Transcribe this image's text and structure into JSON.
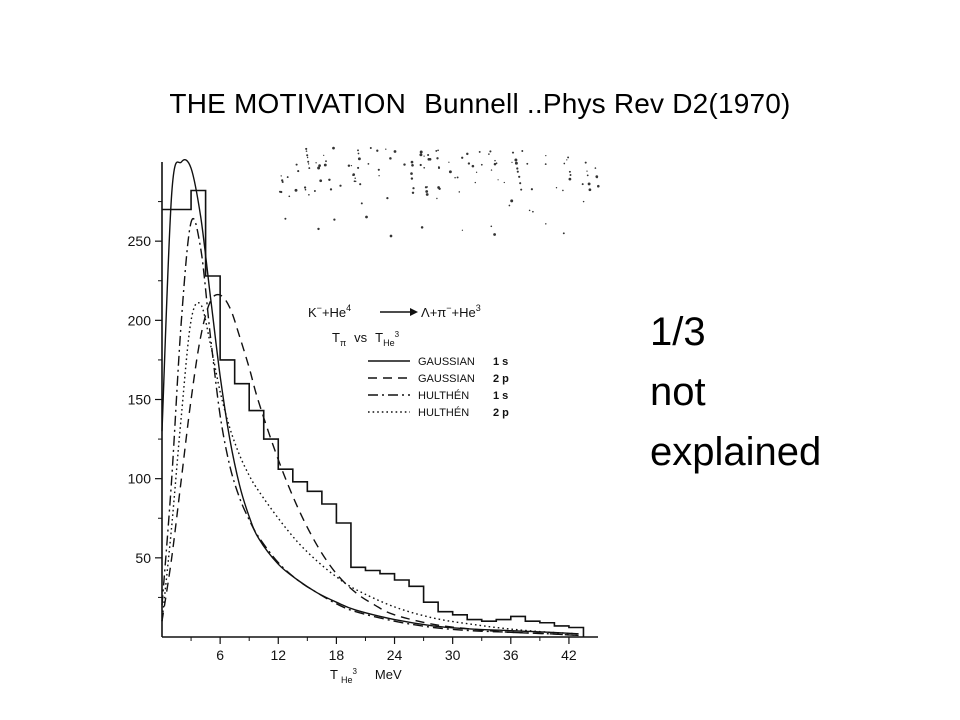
{
  "slide": {
    "title_left": "THE MOTIVATION",
    "title_right": "Bunnell ..Phys Rev D2(1970)",
    "side_lines": [
      "1/3",
      "not",
      "explained"
    ]
  },
  "chart_data": {
    "type": "line",
    "xlabel_base": "T",
    "xlabel_sub": "He",
    "xlabel_sup": "3",
    "xlabel_unit": "MeV",
    "xticks": [
      6,
      12,
      18,
      24,
      30,
      36,
      42
    ],
    "yticks": [
      50,
      100,
      150,
      200,
      250
    ],
    "xlim": [
      0,
      45
    ],
    "ylim": [
      0,
      300
    ],
    "reaction": {
      "k": "K",
      "k_sup": "−",
      "plus1": "+",
      "he4": "He",
      "he4_sup": "4",
      "lambda": "Λ",
      "plus2": "+",
      "pi": "π",
      "pi_sup": "−",
      "plus3": "+",
      "he3": "He",
      "he3_sup": "3"
    },
    "subtitle": {
      "t_pi": "T",
      "pi_sub": "π",
      "vs": "vs",
      "t_he": "T",
      "he_sub": "He",
      "he_sup": "3"
    },
    "legend": [
      {
        "name": "GAUSSIAN",
        "state": "1 s",
        "style": "solid"
      },
      {
        "name": "GAUSSIAN",
        "state": "2 p",
        "style": "dashed"
      },
      {
        "name": "HULTHÉN",
        "state": "1 s",
        "style": "dashdot"
      },
      {
        "name": "HULTHÉN",
        "state": "2 p",
        "style": "dotted"
      }
    ],
    "histogram": {
      "bin_edges": [
        0,
        3,
        4.5,
        6,
        7.5,
        9,
        10.5,
        12,
        13.5,
        15,
        16.5,
        18,
        19.5,
        21,
        22.5,
        24,
        25.5,
        27,
        28.5,
        30,
        31.5,
        33,
        34.5,
        36,
        37.5,
        39,
        40.5,
        42,
        43.5
      ],
      "values": [
        270,
        282,
        228,
        175,
        160,
        143,
        125,
        106,
        98,
        92,
        84,
        72,
        44,
        42,
        40,
        36,
        32,
        22,
        16,
        14,
        11,
        10,
        11,
        13,
        10,
        9,
        7,
        6
      ]
    },
    "series": [
      {
        "name": "GAUSSIAN 1 s",
        "style": "solid",
        "x": [
          0,
          1,
          2,
          3,
          4,
          5,
          6,
          7,
          8,
          9,
          10,
          12,
          14,
          16,
          18,
          20,
          24,
          28,
          32,
          36,
          40,
          43
        ],
        "y": [
          130,
          280,
          300,
          296,
          265,
          215,
          165,
          125,
          96,
          76,
          62,
          46,
          36,
          28,
          22,
          17,
          11,
          7,
          5,
          4,
          3,
          2
        ]
      },
      {
        "name": "GAUSSIAN 2 p",
        "style": "dashed",
        "x": [
          0,
          1,
          2,
          3,
          4,
          5,
          6,
          7,
          8,
          9,
          10,
          12,
          14,
          16,
          18,
          20,
          22,
          24,
          28,
          32,
          36,
          40,
          43
        ],
        "y": [
          10,
          50,
          100,
          150,
          190,
          212,
          216,
          208,
          190,
          170,
          148,
          112,
          82,
          58,
          40,
          28,
          20,
          14,
          8,
          5,
          3,
          2,
          1
        ]
      },
      {
        "name": "HULTHÉN 1 s",
        "style": "dashdot",
        "x": [
          0,
          1,
          2,
          3,
          4,
          5,
          6,
          7,
          8,
          9,
          10,
          12,
          14,
          16,
          18,
          20,
          24,
          28,
          32,
          36,
          40,
          43
        ],
        "y": [
          20,
          100,
          200,
          262,
          245,
          190,
          140,
          108,
          88,
          74,
          63,
          47,
          36,
          28,
          21,
          16,
          10,
          6,
          4,
          3,
          2,
          1
        ]
      },
      {
        "name": "HULTHÉN 2 p",
        "style": "dotted",
        "x": [
          0,
          1,
          2,
          3,
          4,
          5,
          6,
          7,
          8,
          9,
          10,
          12,
          14,
          16,
          18,
          20,
          24,
          28,
          32,
          36,
          40,
          43
        ],
        "y": [
          10,
          70,
          140,
          200,
          210,
          185,
          155,
          132,
          115,
          102,
          92,
          75,
          60,
          48,
          38,
          30,
          19,
          12,
          8,
          5,
          3,
          2
        ]
      }
    ]
  }
}
